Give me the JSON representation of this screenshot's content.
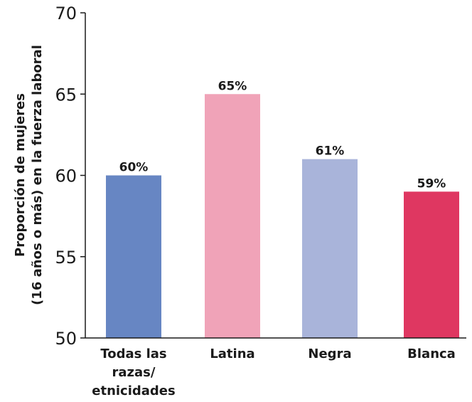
{
  "chart_data": {
    "type": "bar",
    "categories": [
      [
        "Todas las",
        "razas/",
        "etnicidades"
      ],
      [
        "Latina"
      ],
      [
        "Negra"
      ],
      [
        "Blanca"
      ]
    ],
    "values": [
      60,
      65,
      61,
      59
    ],
    "data_labels": [
      "60%",
      "65%",
      "61%",
      "59%"
    ],
    "colors": [
      "#6786c3",
      "#f0a3b8",
      "#a9b4da",
      "#df3761"
    ],
    "ylabel": [
      "Proporción de mujeres",
      "(16 años o más) en la fuerza laboral"
    ],
    "ylim": [
      50,
      70
    ],
    "yticks": [
      50,
      55,
      60,
      65,
      70
    ],
    "grid": false,
    "legend": "none"
  }
}
